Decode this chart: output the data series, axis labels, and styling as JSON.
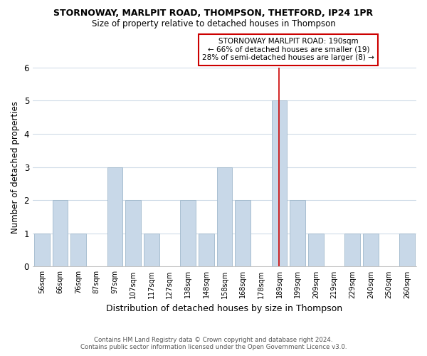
{
  "title": "STORNOWAY, MARLPIT ROAD, THOMPSON, THETFORD, IP24 1PR",
  "subtitle": "Size of property relative to detached houses in Thompson",
  "xlabel": "Distribution of detached houses by size in Thompson",
  "ylabel": "Number of detached properties",
  "bar_labels": [
    "56sqm",
    "66sqm",
    "76sqm",
    "87sqm",
    "97sqm",
    "107sqm",
    "117sqm",
    "127sqm",
    "138sqm",
    "148sqm",
    "158sqm",
    "168sqm",
    "178sqm",
    "189sqm",
    "199sqm",
    "209sqm",
    "219sqm",
    "229sqm",
    "240sqm",
    "250sqm",
    "260sqm"
  ],
  "bar_values": [
    1,
    2,
    1,
    0,
    3,
    2,
    1,
    0,
    2,
    1,
    3,
    2,
    0,
    5,
    2,
    1,
    0,
    1,
    1,
    0,
    1
  ],
  "bar_color": "#c8d8e8",
  "bar_edge_color": "#a0b8cc",
  "highlight_index": 13,
  "highlight_line_color": "#cc0000",
  "ylim": [
    0,
    6
  ],
  "yticks": [
    0,
    1,
    2,
    3,
    4,
    5,
    6
  ],
  "annotation_title": "STORNOWAY MARLPIT ROAD: 190sqm",
  "annotation_line1": "← 66% of detached houses are smaller (19)",
  "annotation_line2": "28% of semi-detached houses are larger (8) →",
  "annotation_box_color": "#ffffff",
  "annotation_box_edge_color": "#cc0000",
  "footer1": "Contains HM Land Registry data © Crown copyright and database right 2024.",
  "footer2": "Contains public sector information licensed under the Open Government Licence v3.0.",
  "background_color": "#ffffff",
  "grid_color": "#d0dce8"
}
